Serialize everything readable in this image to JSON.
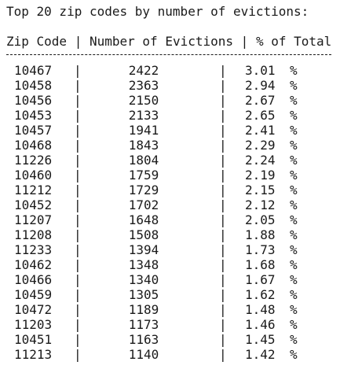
{
  "title": "Top 20 zip codes by number of evictions:",
  "header": {
    "zip": "Zip Code",
    "sep": "|",
    "evictions": "Number of Evictions",
    "pct": "% of Total"
  },
  "separator": "|",
  "percent_sign": "%",
  "rows": [
    {
      "zip": "10467",
      "evictions": "2422",
      "pct": "3.01"
    },
    {
      "zip": "10458",
      "evictions": "2363",
      "pct": "2.94"
    },
    {
      "zip": "10456",
      "evictions": "2150",
      "pct": "2.67"
    },
    {
      "zip": "10453",
      "evictions": "2133",
      "pct": "2.65"
    },
    {
      "zip": "10457",
      "evictions": "1941",
      "pct": "2.41"
    },
    {
      "zip": "10468",
      "evictions": "1843",
      "pct": "2.29"
    },
    {
      "zip": "11226",
      "evictions": "1804",
      "pct": "2.24"
    },
    {
      "zip": "10460",
      "evictions": "1759",
      "pct": "2.19"
    },
    {
      "zip": "11212",
      "evictions": "1729",
      "pct": "2.15"
    },
    {
      "zip": "10452",
      "evictions": "1702",
      "pct": "2.12"
    },
    {
      "zip": "11207",
      "evictions": "1648",
      "pct": "2.05"
    },
    {
      "zip": "11208",
      "evictions": "1508",
      "pct": "1.88"
    },
    {
      "zip": "11233",
      "evictions": "1394",
      "pct": "1.73"
    },
    {
      "zip": "10462",
      "evictions": "1348",
      "pct": "1.68"
    },
    {
      "zip": "10466",
      "evictions": "1340",
      "pct": "1.67"
    },
    {
      "zip": "10459",
      "evictions": "1305",
      "pct": "1.62"
    },
    {
      "zip": "10472",
      "evictions": "1189",
      "pct": "1.48"
    },
    {
      "zip": "11203",
      "evictions": "1173",
      "pct": "1.46"
    },
    {
      "zip": "10451",
      "evictions": "1163",
      "pct": "1.45"
    },
    {
      "zip": "11213",
      "evictions": "1140",
      "pct": "1.42"
    }
  ]
}
